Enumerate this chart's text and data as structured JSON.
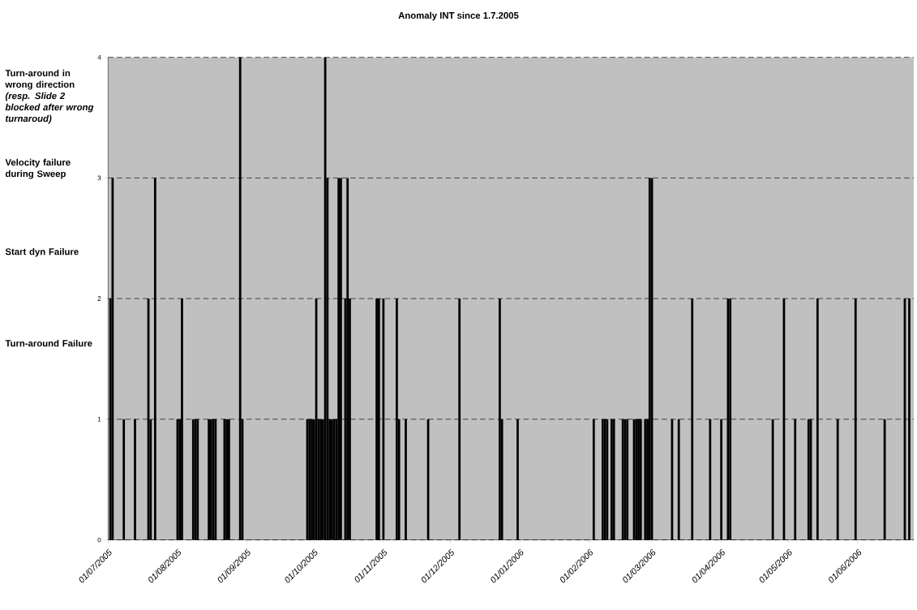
{
  "chart_data": {
    "type": "bar",
    "title": "Anomaly INT since 1.7.2005",
    "annotations": [
      "Turn-around in wrong direction *(resp. Slide 2 blocked after wrong turnaroud)*",
      "Velocity failure during Sweep",
      "Start dyn Failure",
      "Turn-around Failure"
    ],
    "x": [
      "2005-07-02",
      "2005-07-03",
      "2005-07-08",
      "2005-07-13",
      "2005-07-19",
      "2005-07-20",
      "2005-07-22",
      "2005-08-01",
      "2005-08-02",
      "2005-08-03",
      "2005-08-08",
      "2005-08-09",
      "2005-08-10",
      "2005-08-15",
      "2005-08-16",
      "2005-08-17",
      "2005-08-18",
      "2005-08-22",
      "2005-08-23",
      "2005-08-24",
      "2005-08-29",
      "2005-08-30",
      "2005-09-28",
      "2005-09-29",
      "2005-09-30",
      "2005-10-01",
      "2005-10-02",
      "2005-10-03",
      "2005-10-04",
      "2005-10-05",
      "2005-10-06",
      "2005-10-07",
      "2005-10-08",
      "2005-10-09",
      "2005-10-10",
      "2005-10-11",
      "2005-10-12",
      "2005-10-13",
      "2005-10-15",
      "2005-10-16",
      "2005-10-17",
      "2005-10-29",
      "2005-10-30",
      "2005-11-01",
      "2005-11-07",
      "2005-11-08",
      "2005-11-11",
      "2005-11-21",
      "2005-12-05",
      "2005-12-23",
      "2005-12-24",
      "2005-12-31",
      "2006-02-03",
      "2006-02-07",
      "2006-02-08",
      "2006-02-09",
      "2006-02-11",
      "2006-02-12",
      "2006-02-16",
      "2006-02-17",
      "2006-02-18",
      "2006-02-21",
      "2006-02-22",
      "2006-02-23",
      "2006-02-24",
      "2006-02-26",
      "2006-02-27",
      "2006-02-28",
      "2006-03-01",
      "2006-03-10",
      "2006-03-13",
      "2006-03-19",
      "2006-03-27",
      "2006-04-01",
      "2006-04-04",
      "2006-04-05",
      "2006-04-24",
      "2006-04-29",
      "2006-05-04",
      "2006-05-10",
      "2006-05-11",
      "2006-05-14",
      "2006-05-23",
      "2006-05-31",
      "2006-06-13",
      "2006-06-22",
      "2006-06-24"
    ],
    "values": [
      2,
      3,
      1,
      1,
      2,
      1,
      3,
      1,
      1,
      2,
      1,
      1,
      1,
      1,
      1,
      1,
      1,
      1,
      1,
      1,
      4,
      1,
      1,
      1,
      1,
      1,
      2,
      1,
      1,
      1,
      4,
      3,
      1,
      1,
      1,
      1,
      3,
      3,
      2,
      3,
      2,
      2,
      2,
      2,
      2,
      1,
      1,
      1,
      2,
      2,
      1,
      1,
      1,
      1,
      1,
      1,
      1,
      1,
      1,
      1,
      1,
      1,
      1,
      1,
      1,
      1,
      1,
      3,
      3,
      1,
      1,
      2,
      1,
      1,
      2,
      2,
      1,
      2,
      1,
      1,
      1,
      2,
      1,
      2,
      1,
      2,
      2
    ],
    "color": "#000000",
    "xlim": [
      "2005-07-01",
      "2006-06-26"
    ],
    "xticks": [
      {
        "value": "2005-07-01",
        "label": "01/07/2005"
      },
      {
        "value": "2005-08-01",
        "label": "01/08/2005"
      },
      {
        "value": "2005-09-01",
        "label": "01/09/2005"
      },
      {
        "value": "2005-10-01",
        "label": "01/10/2005"
      },
      {
        "value": "2005-11-01",
        "label": "01/11/2005"
      },
      {
        "value": "2005-12-01",
        "label": "01/12/2005"
      },
      {
        "value": "2006-01-01",
        "label": "01/01/2006"
      },
      {
        "value": "2006-02-01",
        "label": "01/02/2006"
      },
      {
        "value": "2006-03-01",
        "label": "01/03/2006"
      },
      {
        "value": "2006-04-01",
        "label": "01/04/2006"
      },
      {
        "value": "2006-05-01",
        "label": "01/05/2006"
      },
      {
        "value": "2006-06-01",
        "label": "01/06/2006"
      }
    ],
    "ylim": [
      0,
      4
    ],
    "yticks": [
      0,
      1,
      2,
      3,
      4
    ],
    "grid": "y"
  }
}
